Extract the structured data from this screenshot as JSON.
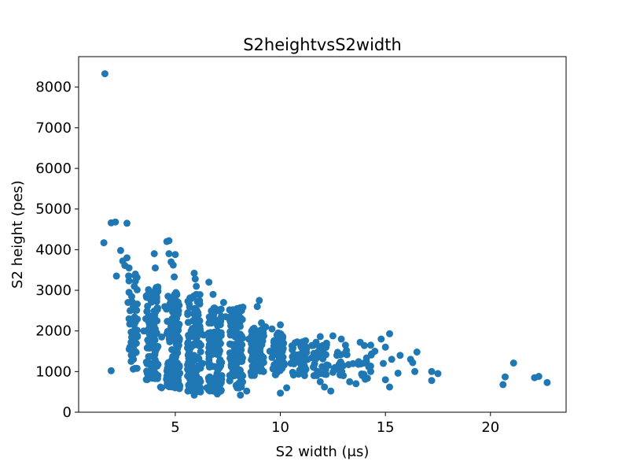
{
  "chart_data": {
    "type": "scatter",
    "title": "S2heightvsS2width",
    "xlabel": "S2 width (μs)",
    "ylabel": "S2 height (pes)",
    "xlim": [
      0.4,
      23.6
    ],
    "ylim": [
      0,
      8750
    ],
    "xticks": [
      5,
      10,
      15,
      20
    ],
    "yticks": [
      0,
      1000,
      2000,
      3000,
      4000,
      5000,
      6000,
      7000,
      8000
    ],
    "grid": false,
    "marker_color": "#1f77b4",
    "series": [
      {
        "points": [
          [
            1.65,
            8330
          ],
          [
            1.6,
            4170
          ],
          [
            1.95,
            4660
          ],
          [
            2.15,
            4680
          ],
          [
            2.7,
            4650
          ],
          [
            1.95,
            1020
          ],
          [
            2.2,
            3350
          ],
          [
            2.4,
            3980
          ],
          [
            2.5,
            3720
          ],
          [
            2.6,
            3610
          ],
          [
            2.7,
            3800
          ],
          [
            2.8,
            3550
          ],
          [
            2.8,
            3230
          ],
          [
            2.8,
            2950
          ],
          [
            2.75,
            2700
          ],
          [
            2.85,
            2500
          ],
          [
            2.8,
            2300
          ],
          [
            2.9,
            1970
          ],
          [
            2.9,
            1720
          ],
          [
            3.0,
            1600
          ],
          [
            2.9,
            1250
          ],
          [
            3.0,
            1060
          ],
          [
            3.2,
            1880
          ],
          [
            3.0,
            2600
          ],
          [
            3.05,
            3100
          ],
          [
            3.1,
            3400
          ],
          [
            3.5,
            2000
          ],
          [
            3.6,
            2300
          ],
          [
            4.0,
            3900
          ],
          [
            4.05,
            3550
          ],
          [
            4.35,
            1850
          ],
          [
            4.5,
            2600
          ],
          [
            4.6,
            4200
          ],
          [
            4.7,
            4220
          ],
          [
            4.7,
            3900
          ],
          [
            4.8,
            3700
          ],
          [
            4.9,
            3620
          ],
          [
            4.95,
            3330
          ],
          [
            5.0,
            3880
          ],
          [
            4.3,
            620
          ],
          [
            4.35,
            600
          ],
          [
            5.0,
            600
          ],
          [
            5.2,
            580
          ],
          [
            4.85,
            2300
          ],
          [
            5.0,
            1300
          ],
          [
            5.2,
            1800
          ],
          [
            5.9,
            3420
          ],
          [
            5.95,
            3280
          ],
          [
            6.0,
            3100
          ],
          [
            6.0,
            2900
          ],
          [
            6.6,
            3200
          ],
          [
            6.8,
            2900
          ],
          [
            5.6,
            520
          ],
          [
            5.9,
            420
          ],
          [
            6.2,
            500
          ],
          [
            6.5,
            600
          ],
          [
            6.8,
            520
          ],
          [
            7.0,
            450
          ],
          [
            7.3,
            2700
          ],
          [
            7.4,
            2350
          ],
          [
            6.3,
            1200
          ],
          [
            6.35,
            1900
          ],
          [
            7.7,
            880
          ],
          [
            8.0,
            600
          ],
          [
            8.1,
            420
          ],
          [
            8.4,
            520
          ],
          [
            8.5,
            1800
          ],
          [
            8.9,
            2600
          ],
          [
            9.0,
            2750
          ],
          [
            9.1,
            2200
          ],
          [
            9.3,
            2100
          ],
          [
            9.6,
            2050
          ],
          [
            9.9,
            1950
          ],
          [
            10.0,
            2150
          ],
          [
            10.1,
            1800
          ],
          [
            10.0,
            470
          ],
          [
            10.3,
            600
          ],
          [
            10.5,
            1200
          ],
          [
            9.5,
            1500
          ],
          [
            9.2,
            1000
          ],
          [
            10.6,
            1580
          ],
          [
            10.8,
            1730
          ],
          [
            11.0,
            1600
          ],
          [
            11.2,
            1760
          ],
          [
            11.5,
            1640
          ],
          [
            11.7,
            1720
          ],
          [
            11.9,
            1860
          ],
          [
            12.2,
            1700
          ],
          [
            12.5,
            1880
          ],
          [
            12.9,
            1800
          ],
          [
            13.1,
            1650
          ],
          [
            11.0,
            1150
          ],
          [
            11.3,
            1300
          ],
          [
            11.6,
            900
          ],
          [
            11.9,
            750
          ],
          [
            12.1,
            620
          ],
          [
            12.4,
            520
          ],
          [
            12.6,
            1100
          ],
          [
            13.0,
            900
          ],
          [
            13.3,
            750
          ],
          [
            13.6,
            700
          ],
          [
            13.9,
            900
          ],
          [
            14.1,
            1250
          ],
          [
            14.3,
            1000
          ],
          [
            13.8,
            1720
          ],
          [
            14.0,
            1640
          ],
          [
            14.3,
            1650
          ],
          [
            14.5,
            1500
          ],
          [
            14.8,
            1800
          ],
          [
            15.0,
            1600
          ],
          [
            15.2,
            1930
          ],
          [
            14.9,
            1200
          ],
          [
            15.0,
            800
          ],
          [
            15.2,
            620
          ],
          [
            15.3,
            1300
          ],
          [
            15.6,
            960
          ],
          [
            15.7,
            1400
          ],
          [
            16.2,
            1300
          ],
          [
            16.4,
            1000
          ],
          [
            16.5,
            1480
          ],
          [
            16.3,
            1220
          ],
          [
            17.2,
            1000
          ],
          [
            17.2,
            780
          ],
          [
            17.5,
            950
          ],
          [
            20.6,
            680
          ],
          [
            20.7,
            870
          ],
          [
            21.1,
            1210
          ],
          [
            22.1,
            850
          ],
          [
            22.3,
            880
          ],
          [
            22.7,
            730
          ]
        ]
      }
    ]
  }
}
